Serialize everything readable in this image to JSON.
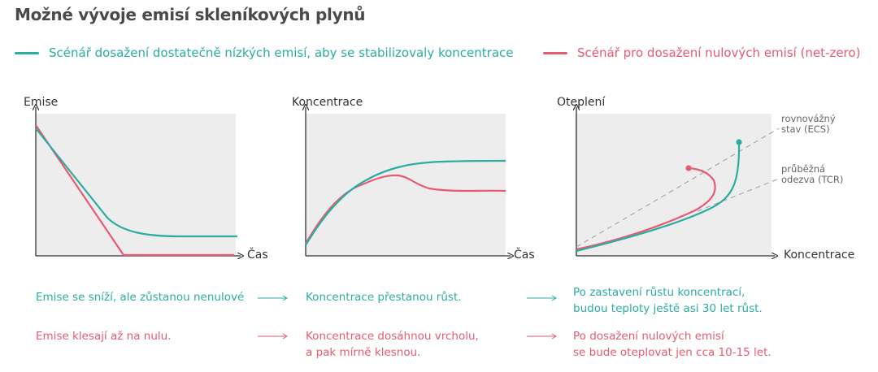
{
  "title": "Možné vývoje emisí skleníkových plynů",
  "legend": {
    "teal": "Scénář dosažení dostatečně nízkých emisí, aby se stabilizovaly koncentrace",
    "red": "Scénář pro dosažení nulových emisí (net-zero)"
  },
  "colors": {
    "teal": "#2bada2",
    "red": "#e85a72",
    "panel_bg": "#ededed",
    "axis": "#333333",
    "ref_line": "#9b9b9b"
  },
  "panels": [
    {
      "y_title": "Emise",
      "x_title": "Čas"
    },
    {
      "y_title": "Koncentrace",
      "x_title": "Čas"
    },
    {
      "y_title": "Oteplení",
      "x_title": "Koncentrace",
      "ref_lines": [
        "rovnovážný stav (ECS)",
        "průběžná odezva (TCR)"
      ]
    }
  ],
  "ref_labels": {
    "ecs_line1": "rovnovážný",
    "ecs_line2": "stav (ECS)",
    "tcr_line1": "průběžná",
    "tcr_line2": "odezva (TCR)"
  },
  "notes": {
    "teal": [
      "Emise se sníží, ale zůstanou nenulové",
      "Koncentrace přestanou růst.",
      "Po zastavení růstu koncentrací, budou teploty ještě asi 30 let růst."
    ],
    "red": [
      "Emise klesají až na nulu.",
      "Koncentrace dosáhnou vrcholu, a pak mírně klesnou.",
      "Po dosažení nulových emisí se bude oteplovat jen cca 10-15 let."
    ],
    "teal_3_line1": "Po zastavení růstu koncentrací,",
    "teal_3_line2": "budou teploty ještě asi 30 let růst.",
    "red_2_line1": "Koncentrace dosáhnou vrcholu,",
    "red_2_line2": "a pak mírně klesnou.",
    "red_3_line1": "Po dosažení nulových emisí",
    "red_3_line2": "se bude oteplovat jen cca 10-15 let."
  }
}
